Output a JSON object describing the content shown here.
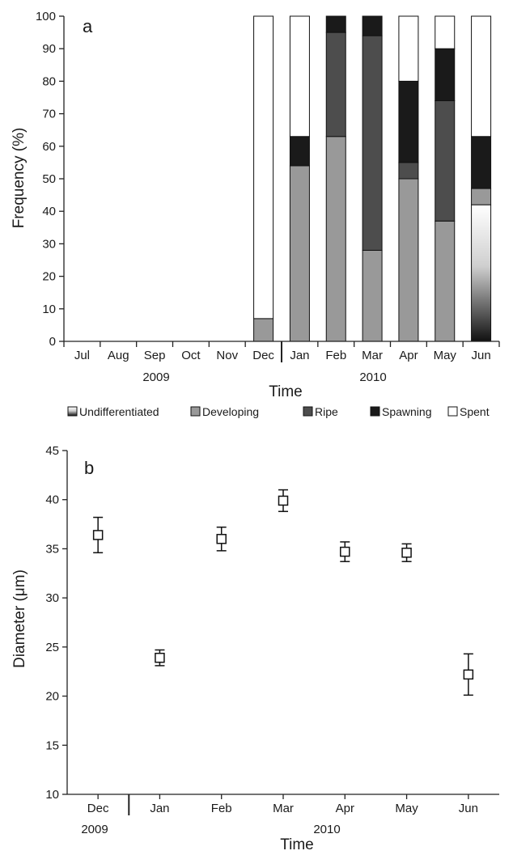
{
  "chart_data": [
    {
      "panel": "a",
      "type": "bar",
      "stacked": true,
      "title": "",
      "xlabel": "Time",
      "ylabel": "Frequency (%)",
      "ylim": [
        0,
        100
      ],
      "yticks": [
        0,
        10,
        20,
        30,
        40,
        50,
        60,
        70,
        80,
        90,
        100
      ],
      "categories": [
        "Jul",
        "Aug",
        "Sep",
        "Oct",
        "Nov",
        "Dec",
        "Jan",
        "Feb",
        "Mar",
        "Apr",
        "May",
        "Jun"
      ],
      "year_labels": [
        "2009",
        "2010"
      ],
      "legend_position": "bottom",
      "series": [
        {
          "name": "Undifferentiated",
          "color": "gradient-white-to-black",
          "values": [
            0,
            0,
            0,
            0,
            0,
            0,
            0,
            0,
            0,
            0,
            0,
            42
          ]
        },
        {
          "name": "Developing",
          "color": "#999999",
          "values": [
            0,
            0,
            0,
            0,
            0,
            7,
            54,
            63,
            28,
            50,
            37,
            5
          ]
        },
        {
          "name": "Ripe",
          "color": "#4d4d4d",
          "values": [
            0,
            0,
            0,
            0,
            0,
            0,
            0,
            32,
            66,
            5,
            37,
            0
          ]
        },
        {
          "name": "Spawning",
          "color": "#1a1a1a",
          "values": [
            0,
            0,
            0,
            0,
            0,
            0,
            9,
            5,
            6,
            25,
            16,
            16
          ]
        },
        {
          "name": "Spent",
          "color": "#ffffff",
          "values": [
            0,
            0,
            0,
            0,
            0,
            93,
            37,
            0,
            0,
            20,
            10,
            37
          ]
        }
      ]
    },
    {
      "panel": "b",
      "type": "scatter",
      "title": "",
      "xlabel": "Time",
      "ylabel": "Diameter (μm)",
      "ylim": [
        10,
        45
      ],
      "yticks": [
        10,
        15,
        20,
        25,
        30,
        35,
        40,
        45
      ],
      "categories": [
        "Dec",
        "Jan",
        "Feb",
        "Mar",
        "Apr",
        "May",
        "Jun"
      ],
      "year_labels": [
        "2009",
        "2010"
      ],
      "series": [
        {
          "name": "",
          "marker": "open-square",
          "values": [
            36.4,
            23.9,
            36.0,
            39.9,
            34.7,
            34.6,
            22.2
          ],
          "error": [
            1.8,
            0.8,
            1.2,
            1.1,
            1.0,
            0.9,
            2.1
          ]
        }
      ]
    }
  ]
}
